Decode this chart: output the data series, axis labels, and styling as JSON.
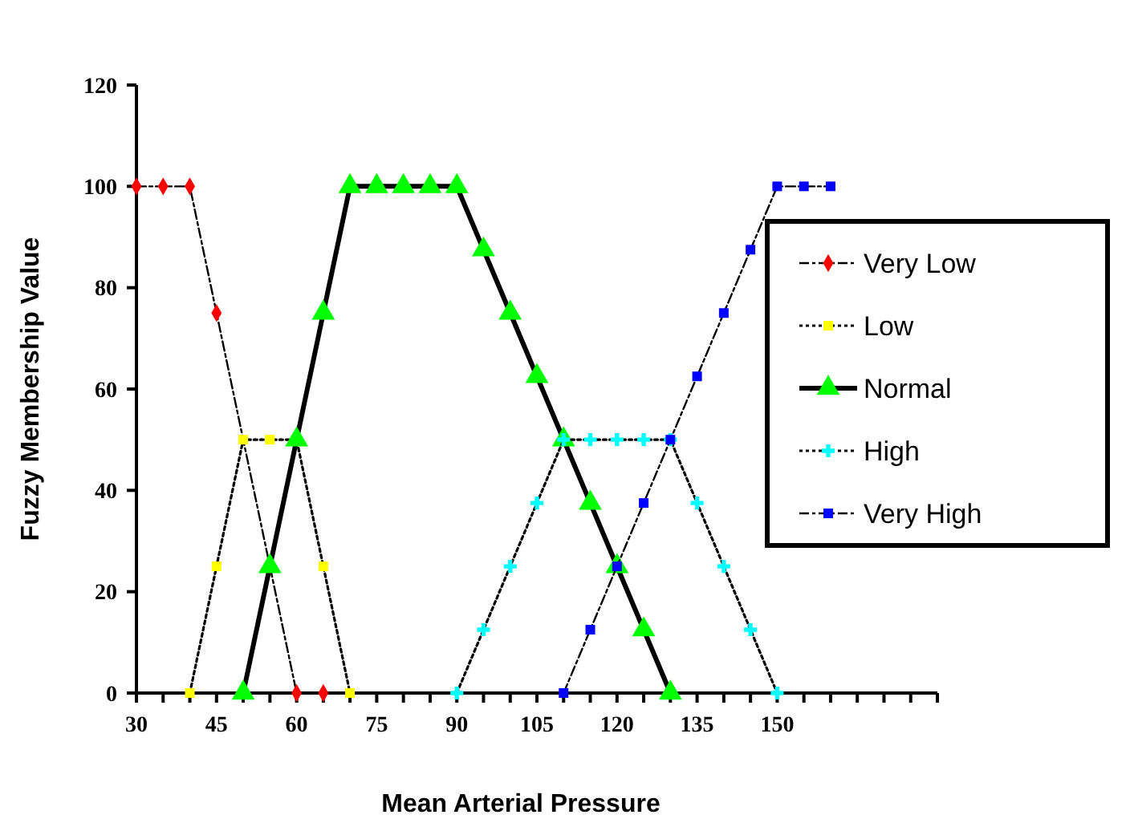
{
  "chart_data": {
    "type": "line",
    "xlabel": "Mean Arterial Pressure",
    "ylabel": "Fuzzy Membership Value",
    "xlim": [
      30,
      180
    ],
    "ylim": [
      0,
      120
    ],
    "xticks": [
      30,
      {
        "value": 35,
        "label": null
      },
      {
        "value": 40,
        "label": null
      },
      45,
      {
        "value": 50,
        "label": null
      },
      {
        "value": 55,
        "label": null
      },
      60,
      {
        "value": 65,
        "label": null
      },
      {
        "value": 70,
        "label": null
      },
      75,
      {
        "value": 80,
        "label": null
      },
      {
        "value": 85,
        "label": null
      },
      90,
      {
        "value": 95,
        "label": null
      },
      {
        "value": 100,
        "label": null
      },
      105,
      {
        "value": 110,
        "label": null
      },
      {
        "value": 115,
        "label": null
      },
      120,
      {
        "value": 125,
        "label": null
      },
      {
        "value": 130,
        "label": null
      },
      135,
      {
        "value": 140,
        "label": null
      },
      {
        "value": 145,
        "label": null
      },
      150,
      {
        "value": 155,
        "label": null
      },
      {
        "value": 160,
        "label": null
      },
      {
        "value": 165,
        "label": null
      },
      {
        "value": 170,
        "label": null
      },
      {
        "value": 175,
        "label": null
      },
      {
        "value": 180,
        "label": null
      }
    ],
    "yticks": [
      0,
      20,
      40,
      60,
      80,
      100,
      120
    ],
    "grid": false,
    "legend": "right",
    "series": [
      {
        "name": "Very Low",
        "color": "#ff0000",
        "marker": "diamond",
        "line_style": "dashed",
        "x": [
          30,
          35,
          40,
          45,
          55,
          60,
          65
        ],
        "values": [
          100,
          100,
          100,
          75,
          25,
          0,
          0
        ]
      },
      {
        "name": "Low",
        "color": "#ffff00",
        "marker": "square",
        "line_style": "dotted",
        "x": [
          40,
          45,
          50,
          55,
          60,
          65,
          70
        ],
        "values": [
          0,
          25,
          50,
          50,
          50,
          25,
          0
        ]
      },
      {
        "name": "Normal",
        "color": "#00ff00",
        "marker": "triangle",
        "line_style": "solid",
        "x": [
          50,
          55,
          60,
          65,
          70,
          75,
          80,
          85,
          90,
          95,
          100,
          105,
          110,
          115,
          120,
          125,
          130
        ],
        "values": [
          0,
          25,
          50,
          75,
          100,
          100,
          100,
          100,
          100,
          87.5,
          75,
          62.5,
          50,
          37.5,
          25,
          12.5,
          0
        ]
      },
      {
        "name": "High",
        "color": "#00ffff",
        "marker": "cross",
        "line_style": "dotted",
        "x": [
          90,
          95,
          100,
          105,
          110,
          115,
          120,
          125,
          130,
          135,
          140,
          145,
          150
        ],
        "values": [
          0,
          12.5,
          25,
          37.5,
          50,
          50,
          50,
          50,
          50,
          37.5,
          25,
          12.5,
          0
        ]
      },
      {
        "name": "Very High",
        "color": "#0000ff",
        "marker": "square",
        "line_style": "dashed",
        "x": [
          110,
          115,
          120,
          125,
          130,
          135,
          140,
          145,
          150,
          155,
          160
        ],
        "values": [
          0,
          12.5,
          25,
          37.5,
          50,
          62.5,
          75,
          87.5,
          100,
          100,
          100
        ]
      }
    ]
  }
}
